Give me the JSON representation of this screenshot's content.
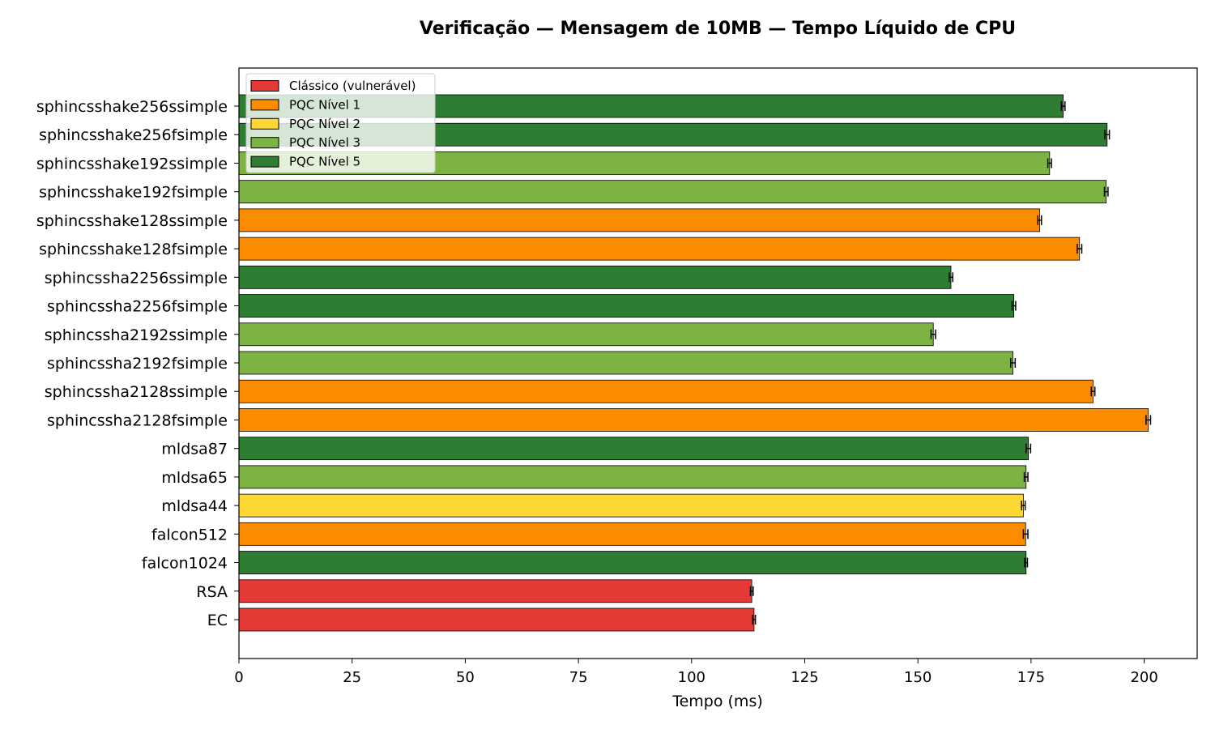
{
  "chart_data": {
    "type": "bar",
    "orientation": "horizontal",
    "title": "Verificação — Mensagem de 10MB — Tempo Líquido de CPU",
    "xlabel": "Tempo (ms)",
    "ylabel": "",
    "xlim": [
      0,
      211.7
    ],
    "xticks": [
      0,
      25,
      50,
      75,
      100,
      125,
      150,
      175,
      200
    ],
    "grid": false,
    "legend_position": "top-left",
    "legend": [
      {
        "label": "Clássico (vulnerável)",
        "color": "#e53935"
      },
      {
        "label": "PQC Nível 1",
        "color": "#fb8c00"
      },
      {
        "label": "PQC Nível 2",
        "color": "#fdd835"
      },
      {
        "label": "PQC Nível 3",
        "color": "#7cb342"
      },
      {
        "label": "PQC Nível 5",
        "color": "#2e7d32"
      }
    ],
    "categories": [
      "sphincsshake256ssimple",
      "sphincsshake256fsimple",
      "sphincsshake192ssimple",
      "sphincsshake192fsimple",
      "sphincsshake128ssimple",
      "sphincsshake128fsimple",
      "sphincssha2256ssimple",
      "sphincssha2256fsimple",
      "sphincssha2192ssimple",
      "sphincssha2192fsimple",
      "sphincssha2128ssimple",
      "sphincssha2128fsimple",
      "mldsa87",
      "mldsa65",
      "mldsa44",
      "falcon512",
      "falcon1024",
      "RSA",
      "EC"
    ],
    "values": [
      182.1,
      191.8,
      179.1,
      191.6,
      176.9,
      185.7,
      157.3,
      171.2,
      153.4,
      171.0,
      188.7,
      200.9,
      174.4,
      173.9,
      173.3,
      173.8,
      173.9,
      113.3,
      113.8
    ],
    "errors": [
      0.4,
      0.5,
      0.4,
      0.4,
      0.4,
      0.5,
      0.4,
      0.4,
      0.5,
      0.5,
      0.4,
      0.5,
      0.5,
      0.4,
      0.4,
      0.5,
      0.3,
      0.3,
      0.3
    ],
    "levels": [
      4,
      4,
      3,
      3,
      1,
      1,
      4,
      4,
      3,
      3,
      1,
      1,
      4,
      3,
      2,
      1,
      4,
      0,
      0
    ]
  }
}
